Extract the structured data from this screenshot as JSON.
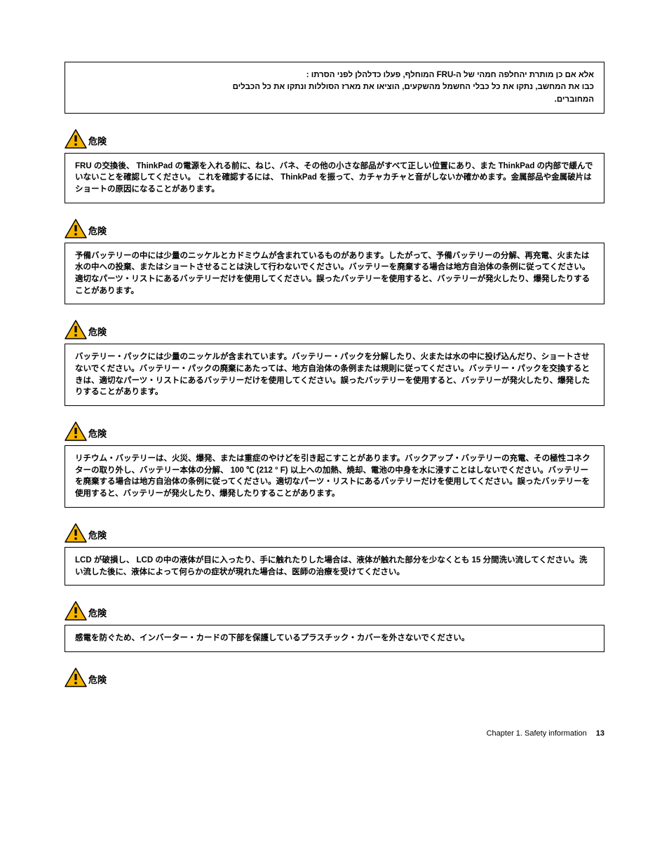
{
  "hebrew_block": {
    "line1": "אלא אם כן מותרת יהחלפה חמהי של ה-FRU המוחלף, פעלו כדלהלן לפני הסרתו :",
    "line2": "כבו את המחשב, נתקו את כל כבלי החשמל מהשקעים, הוציאו את מארז הסוללות ונתקו את כל הכבלים",
    "line3": "המחוברים."
  },
  "danger_label": "危険",
  "blocks": [
    {
      "text": "FRU の交換後、 ThinkPad の電源を入れる前に、ねじ、バネ、その他の小さな部品がすべて正しい位置にあり、また ThinkPad の内部で緩んでいないことを確認してください。\nこれを確認するには、 ThinkPad を振って、カチャカチャと音がしないか確かめます。金属部品や金属破片はショートの原因になることがあります。"
    },
    {
      "text": "予備バッテリーの中には少量のニッケルとカドミウムが含まれているものがあります。したがって、予備バッテリーの分解、再充電、火または水の中への投棄、またはショートさせることは決して行わないでください。バッテリーを廃棄する場合は地方自治体の条例に従ってください。適切なパーツ・リストにあるバッテリーだけを使用してください。誤ったバッテリーを使用すると、バッテリーが発火したり、爆発したりすることがあります。"
    },
    {
      "text": "バッテリー・パックには少量のニッケルが含まれています。バッテリー・パックを分解したり、火または水の中に投げ込んだり、ショートさせないでください。バッテリー・パックの廃棄にあたっては、地方自治体の条例または規則に従ってください。バッテリー・パックを交換するときは、適切なパーツ・リストにあるバッテリーだけを使用してください。誤ったバッテリーを使用すると、バッテリーが発火したり、爆発したりすることがあります。"
    },
    {
      "text": "リチウム・バッテリーは、火災、爆発、または重症のやけどを引き起こすことがあります。バックアップ・バッテリーの充電、その極性コネクターの取り外し、バッテリー本体の分解、\n100 ℃ (212 ° F) 以上への加熱、焼却、電池の中身を水に浸すことはしないでください。バッテリーを廃棄する場合は地方自治体の条例に従ってください。適切なパーツ・リストにあるバッテリーだけを使用してください。誤ったバッテリーを使用すると、バッテリーが発火したり、爆発したりすることがあります。"
    },
    {
      "text": "LCD が破損し、 LCD の中の液体が目に入ったり、手に触れたりした場合は、液体が触れた部分を少なくとも 15 分間洗い流してください。洗い流した後に、液体によって何らかの症状が現れた場合は、医師の治療を受けてください。"
    },
    {
      "text": "感電を防ぐため、インバーター・カードの下部を保護しているプラスチック・カバーを外さないでください。"
    }
  ],
  "footer": {
    "chapter": "Chapter 1. Safety information",
    "page": "13"
  },
  "colors": {
    "icon_fill": "#f7b500",
    "icon_stroke": "#000000",
    "text": "#000000",
    "bg": "#ffffff"
  }
}
